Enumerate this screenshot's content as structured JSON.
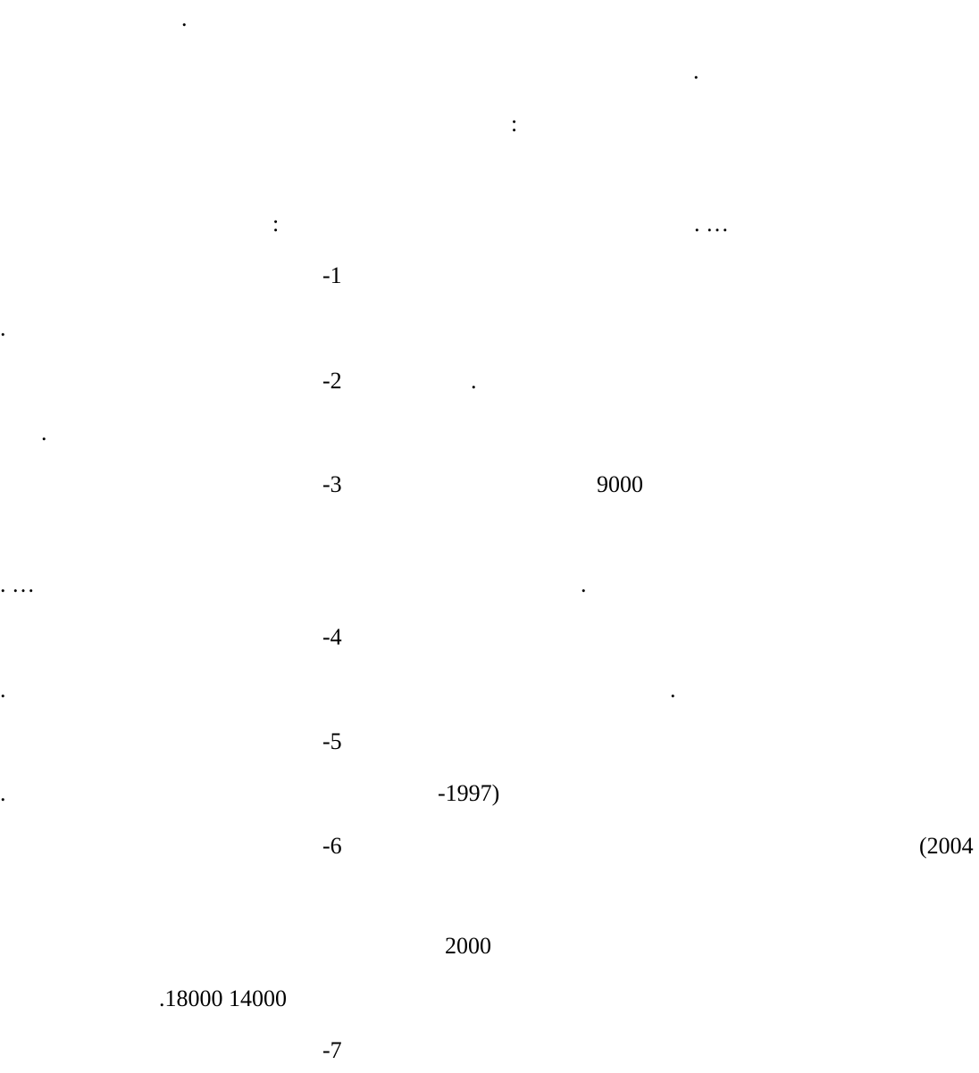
{
  "document": {
    "fragments": [
      {
        "id": "f01",
        "text": "."
      },
      {
        "id": "f02",
        "text": "."
      },
      {
        "id": "f03",
        "text": ":"
      },
      {
        "id": "f04",
        "text": ":"
      },
      {
        "id": "f05",
        "text": ". …"
      },
      {
        "id": "f06",
        "text": "-1"
      },
      {
        "id": "f07",
        "text": "."
      },
      {
        "id": "f08",
        "text": "-2"
      },
      {
        "id": "f09",
        "text": "."
      },
      {
        "id": "f10",
        "text": "."
      },
      {
        "id": "f11",
        "text": "-3"
      },
      {
        "id": "f12",
        "text": "9000"
      },
      {
        "id": "f13",
        "text": ". …"
      },
      {
        "id": "f14",
        "text": "."
      },
      {
        "id": "f15",
        "text": "-4"
      },
      {
        "id": "f16",
        "text": "."
      },
      {
        "id": "f17",
        "text": "."
      },
      {
        "id": "f18",
        "text": "-5"
      },
      {
        "id": "f19",
        "text": "."
      },
      {
        "id": "f20",
        "text": "-1997)"
      },
      {
        "id": "f21",
        "text": "-6"
      },
      {
        "id": "f22",
        "text": "(2004"
      },
      {
        "id": "f23",
        "text": "2000"
      },
      {
        "id": "f24",
        "text": ".18000 14000"
      },
      {
        "id": "f25",
        "text": "-7"
      }
    ]
  }
}
